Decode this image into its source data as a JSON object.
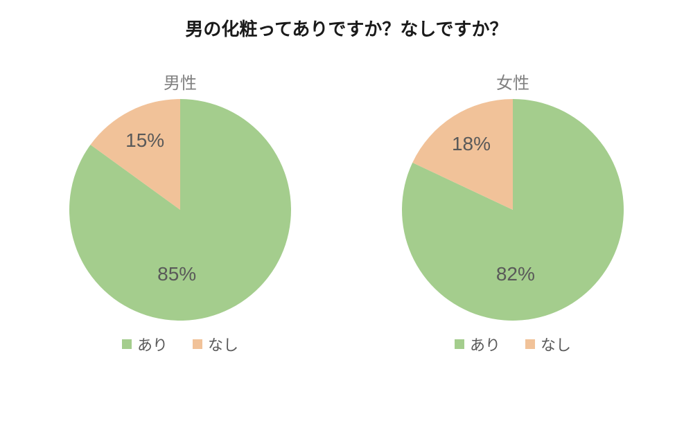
{
  "title": "男の化粧ってありですか？なしですか？",
  "title_fontsize": 26,
  "title_color": "#1a1a1a",
  "background_color": "#ffffff",
  "pie_radius": 160,
  "pie_start_angle_deg": -90,
  "subtitle_fontsize": 24,
  "subtitle_color": "#808080",
  "value_label_fontsize": 28,
  "value_label_color": "#595959",
  "legend_fontsize": 22,
  "legend_color": "#595959",
  "legend_swatch_size": 14,
  "series": {
    "ari": {
      "label": "あり",
      "color": "#a4cd8d"
    },
    "nashi": {
      "label": "なし",
      "color": "#f1c299"
    }
  },
  "panels": [
    {
      "title": "男性",
      "slices": [
        {
          "series": "ari",
          "value": 85,
          "display": "85%",
          "label_offset_r": 0.58,
          "label_angle_offset": 30
        },
        {
          "series": "nashi",
          "value": 15,
          "display": "15%",
          "label_offset_r": 0.7,
          "label_angle_offset": 0
        }
      ]
    },
    {
      "title": "女性",
      "slices": [
        {
          "series": "ari",
          "value": 82,
          "display": "82%",
          "label_offset_r": 0.58,
          "label_angle_offset": 30
        },
        {
          "series": "nashi",
          "value": 18,
          "display": "18%",
          "label_offset_r": 0.7,
          "label_angle_offset": 0
        }
      ]
    }
  ]
}
